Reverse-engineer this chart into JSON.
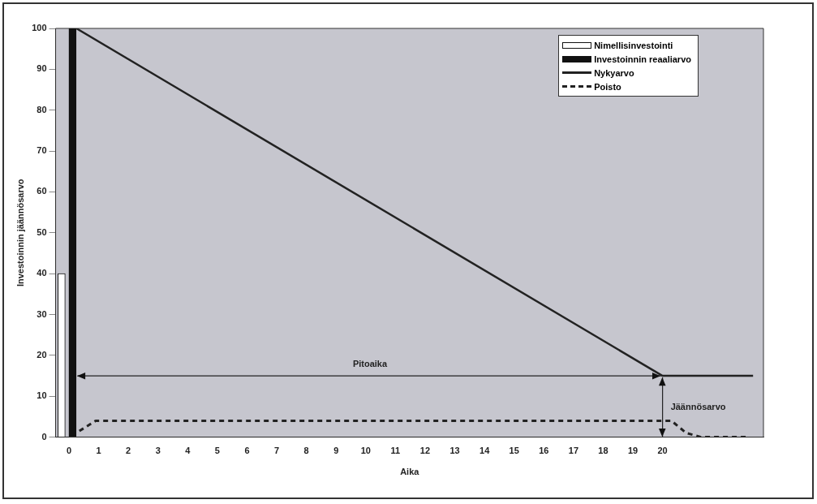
{
  "chart_data": {
    "type": "line",
    "xlabel": "Aika",
    "ylabel": "Investoinnin jäännösarvo",
    "xlim": [
      -0.45,
      23.4
    ],
    "xticks": [
      0,
      1,
      2,
      3,
      4,
      5,
      6,
      7,
      8,
      9,
      10,
      11,
      12,
      13,
      14,
      15,
      16,
      17,
      18,
      19,
      20
    ],
    "ylim": [
      0,
      100
    ],
    "yticks": [
      0,
      10,
      20,
      30,
      40,
      50,
      60,
      70,
      80,
      90,
      100
    ],
    "series": [
      {
        "name": "Nimellisinvestointi",
        "type": "bar",
        "color": "#ffffff",
        "x": [
          -0.25
        ],
        "values": [
          40
        ]
      },
      {
        "name": "Investoinnin reaaliarvo",
        "type": "bar",
        "color": "#111111",
        "x": [
          0.12
        ],
        "values": [
          100
        ]
      },
      {
        "name": "Nykyarvo",
        "color": "#222222",
        "line_style": "solid",
        "x": [
          0.25,
          20,
          23.05
        ],
        "values": [
          100,
          15,
          15
        ]
      },
      {
        "name": "Poisto",
        "color": "#222222",
        "line_style": "dashed",
        "x": [
          0.35,
          0.9,
          20.3,
          20.8,
          21.3,
          22.8
        ],
        "values": [
          1.5,
          4,
          4,
          1,
          0,
          0
        ]
      }
    ],
    "ref_lines": [
      {
        "axis": "y",
        "value": 15,
        "label": "Pitoaika",
        "color": "#222222"
      },
      {
        "axis": "x",
        "value": 20,
        "label": "Jäännösarvo",
        "color": "#222222"
      }
    ],
    "legend": "top right",
    "marker": "none",
    "grid": false
  }
}
